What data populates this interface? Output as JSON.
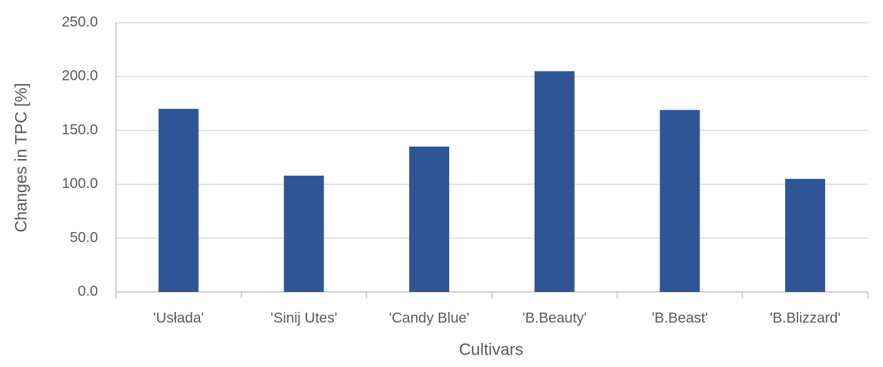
{
  "chart_data": {
    "type": "bar",
    "x_label": "Cultivars",
    "y_label": "Changes in TPC [%]",
    "categories": [
      "'Usłada'",
      "'Sinij Utes'",
      "'Candy Blue'",
      "'B.Beauty'",
      "'B.Beast'",
      "'B.Blizzard'"
    ],
    "values": [
      170,
      108,
      135,
      205,
      169,
      105
    ],
    "color": "#2f5597",
    "ylim": [
      0,
      250
    ],
    "yticks": [
      {
        "value": 0,
        "label": "0.0"
      },
      {
        "value": 50,
        "label": "50.0"
      },
      {
        "value": 100,
        "label": "100.0"
      },
      {
        "value": 150,
        "label": "150.0"
      },
      {
        "value": 200,
        "label": "200.0"
      },
      {
        "value": 250,
        "label": "250.0"
      }
    ],
    "grid": true
  }
}
